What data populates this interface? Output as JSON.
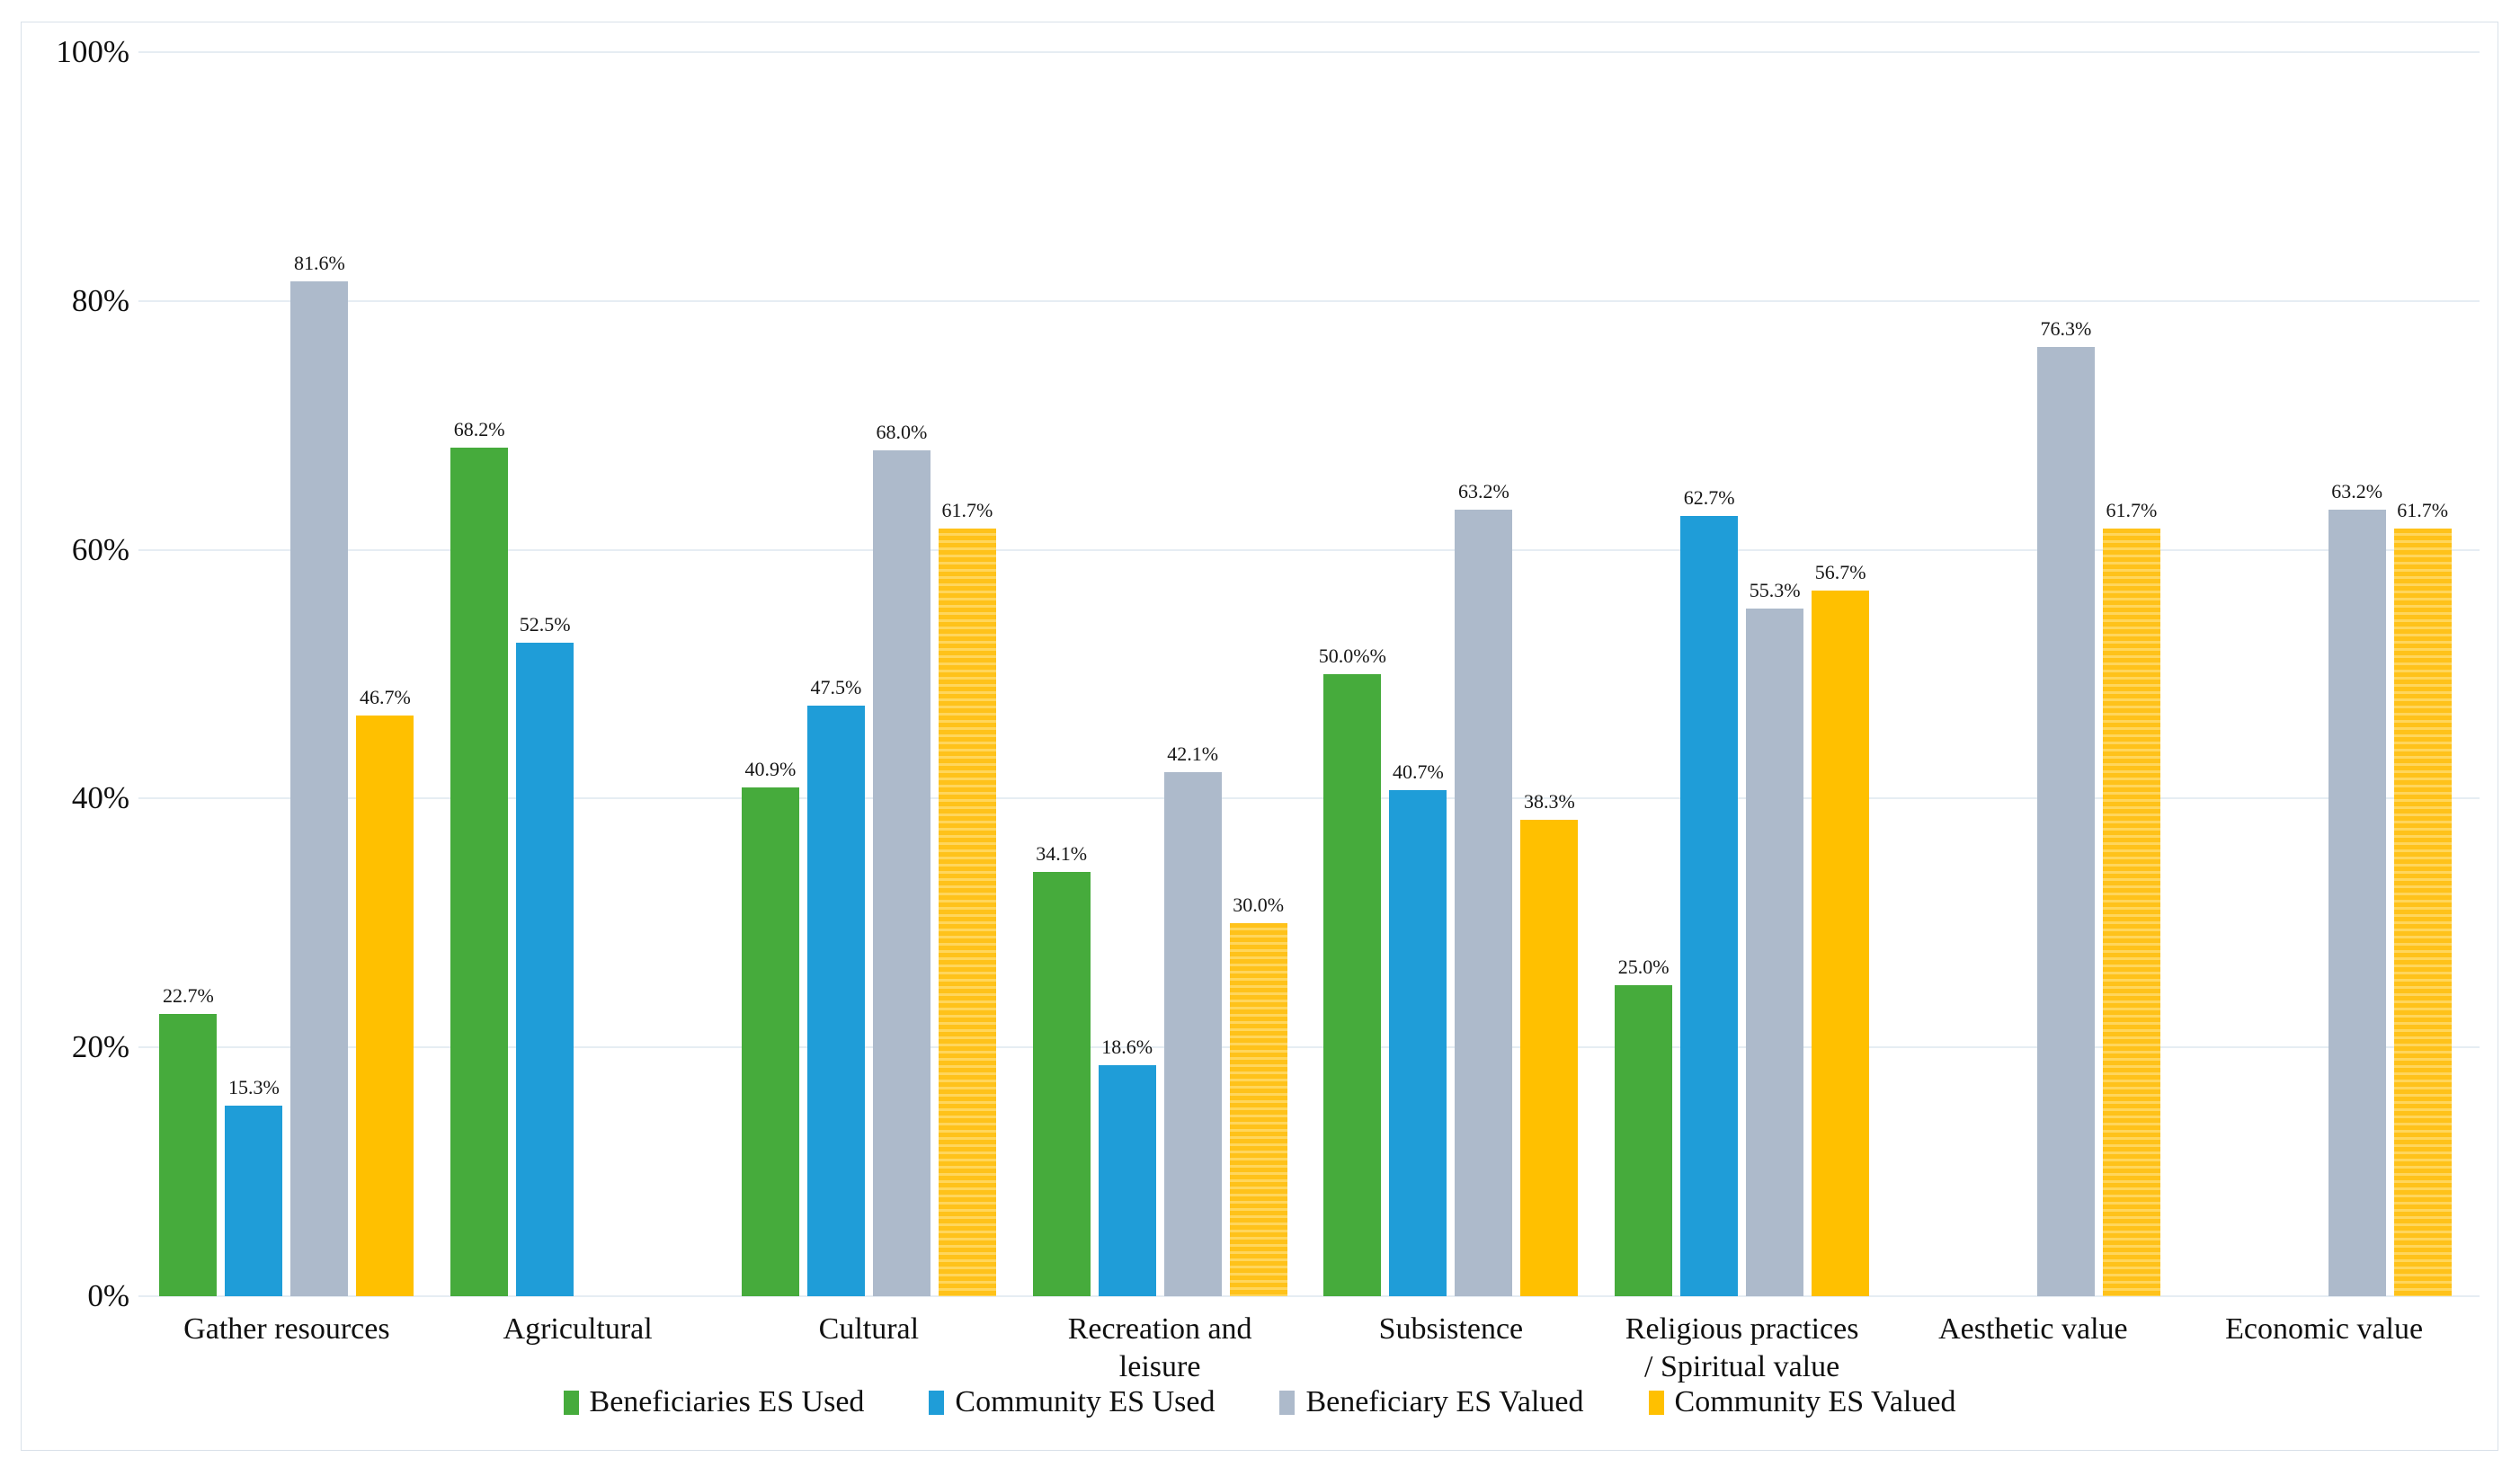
{
  "chart_data": {
    "type": "bar",
    "title": "",
    "xlabel": "",
    "ylabel": "",
    "ylim": [
      0,
      100
    ],
    "y_ticks": [
      "0%",
      "20%",
      "40%",
      "60%",
      "80%",
      "100%"
    ],
    "grid": true,
    "legend_position": "bottom",
    "categories": [
      {
        "label_lines": [
          "Gather resources"
        ]
      },
      {
        "label_lines": [
          "Agricultural"
        ]
      },
      {
        "label_lines": [
          "Cultural"
        ]
      },
      {
        "label_lines": [
          "Recreation and",
          "leisure"
        ]
      },
      {
        "label_lines": [
          "Subsistence"
        ]
      },
      {
        "label_lines": [
          "Religious practices",
          "/ Spiritual value"
        ]
      },
      {
        "label_lines": [
          "Aesthetic value"
        ]
      },
      {
        "label_lines": [
          "Economic value"
        ]
      }
    ],
    "series": [
      {
        "name": "Beneficiaries ES Used",
        "color": "#46ab3c",
        "values": [
          22.7,
          68.2,
          40.9,
          34.1,
          50.0,
          25.0,
          null,
          null
        ],
        "labels": [
          "22.7%",
          "68.2%",
          "40.9%",
          "34.1%",
          "50.0%%",
          "25.0%",
          null,
          null
        ],
        "striped": [
          false,
          false,
          false,
          false,
          false,
          false,
          null,
          null
        ]
      },
      {
        "name": "Community ES Used",
        "color": "#1f9dd8",
        "values": [
          15.3,
          52.5,
          47.5,
          18.6,
          40.7,
          62.7,
          null,
          null
        ],
        "labels": [
          "15.3%",
          "52.5%",
          "47.5%",
          "18.6%",
          "40.7%",
          "62.7%",
          null,
          null
        ],
        "striped": [
          false,
          false,
          false,
          false,
          false,
          false,
          null,
          null
        ]
      },
      {
        "name": "Beneficiary ES Valued",
        "color": "#adbacb",
        "values": [
          81.6,
          null,
          68.0,
          42.1,
          63.2,
          55.3,
          76.3,
          63.2
        ],
        "labels": [
          "81.6%",
          null,
          "68.0%",
          "42.1%",
          "63.2%",
          "55.3%",
          "76.3%",
          "63.2%"
        ],
        "striped": [
          false,
          null,
          false,
          false,
          false,
          false,
          false,
          false
        ]
      },
      {
        "name": "Community ES Valued",
        "color": "#ffc000",
        "values": [
          46.7,
          null,
          61.7,
          30.0,
          38.3,
          56.7,
          61.7,
          61.7
        ],
        "labels": [
          "46.7%",
          null,
          "61.7%",
          "30.0%",
          "38.3%",
          "56.7%",
          "61.7%",
          "61.7%"
        ],
        "striped": [
          false,
          null,
          true,
          true,
          false,
          false,
          true,
          true
        ]
      }
    ]
  },
  "style_colors": {
    "gridline": "#e6edf3",
    "frame_border": "#d9e1e9",
    "label_text": "#161616"
  }
}
